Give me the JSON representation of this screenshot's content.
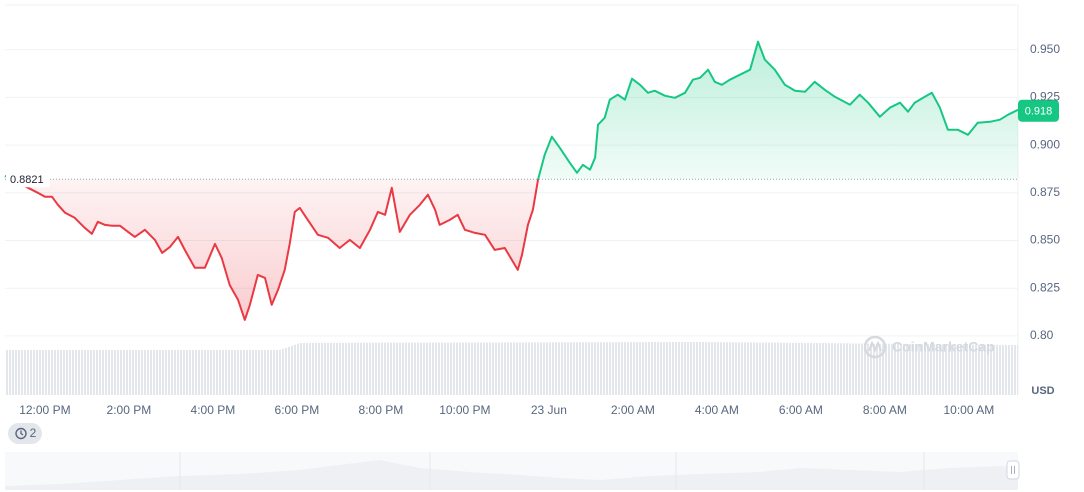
{
  "chart_data": {
    "type": "line",
    "x": [
      -0.95,
      -0.17,
      0,
      0.17,
      0.31,
      0.48,
      0.71,
      0.95,
      1.12,
      1.26,
      1.43,
      1.6,
      1.79,
      1.98,
      2.14,
      2.38,
      2.62,
      2.79,
      2.98,
      3.17,
      3.33,
      3.57,
      3.81,
      4.05,
      4.21,
      4.4,
      4.6,
      4.76,
      4.88,
      5.07,
      5.24,
      5.4,
      5.55,
      5.71,
      5.83,
      5.95,
      6.07,
      6.26,
      6.5,
      6.74,
      7.02,
      7.26,
      7.5,
      7.74,
      7.93,
      8.1,
      8.26,
      8.45,
      8.69,
      8.93,
      9.12,
      9.29,
      9.4,
      9.64,
      9.83,
      10,
      10.24,
      10.48,
      10.71,
      10.95,
      11.12,
      11.26,
      11.36,
      11.5,
      11.62,
      11.74,
      11.9,
      12.07,
      12.26,
      12.5,
      12.67,
      12.81,
      12.98,
      13.1,
      13.17,
      13.33,
      13.45,
      13.64,
      13.81,
      13.98,
      14.17,
      14.36,
      14.52,
      14.76,
      15,
      15.24,
      15.43,
      15.6,
      15.79,
      15.95,
      16.12,
      16.31,
      16.55,
      16.79,
      16.98,
      17.14,
      17.38,
      17.62,
      17.86,
      18.1,
      18.33,
      18.57,
      18.81,
      19.17,
      19.4,
      19.6,
      19.88,
      20.12,
      20.36,
      20.55,
      20.71,
      20.95,
      21.12,
      21.31,
      21.5,
      21.74,
      21.98,
      22.21,
      22.5,
      22.74,
      22.93,
      23.17
    ],
    "values": [
      0.8839,
      0.875,
      0.8729,
      0.8729,
      0.8687,
      0.8645,
      0.8619,
      0.8566,
      0.8535,
      0.8598,
      0.8582,
      0.8577,
      0.8577,
      0.8545,
      0.8519,
      0.8556,
      0.8503,
      0.8435,
      0.8467,
      0.8519,
      0.8451,
      0.8357,
      0.8357,
      0.8482,
      0.8409,
      0.8267,
      0.8189,
      0.8084,
      0.8163,
      0.832,
      0.8304,
      0.8163,
      0.8241,
      0.8346,
      0.8482,
      0.865,
      0.8671,
      0.8608,
      0.853,
      0.8514,
      0.8461,
      0.8503,
      0.8461,
      0.8556,
      0.865,
      0.8635,
      0.8776,
      0.8545,
      0.8635,
      0.8687,
      0.874,
      0.8661,
      0.8582,
      0.8608,
      0.8635,
      0.8556,
      0.854,
      0.853,
      0.8451,
      0.8461,
      0.8398,
      0.8346,
      0.8425,
      0.8582,
      0.8661,
      0.8818,
      0.8949,
      0.9044,
      0.8986,
      0.8907,
      0.8855,
      0.8897,
      0.8871,
      0.8934,
      0.9107,
      0.9143,
      0.9238,
      0.9264,
      0.9238,
      0.9348,
      0.9316,
      0.9274,
      0.9285,
      0.9259,
      0.9248,
      0.9274,
      0.9343,
      0.9353,
      0.9395,
      0.9332,
      0.9316,
      0.9343,
      0.9369,
      0.9395,
      0.9542,
      0.9448,
      0.9395,
      0.9316,
      0.9285,
      0.928,
      0.9332,
      0.929,
      0.9253,
      0.9212,
      0.9264,
      0.9222,
      0.9149,
      0.9196,
      0.9222,
      0.9175,
      0.9222,
      0.9253,
      0.9274,
      0.9196,
      0.908,
      0.908,
      0.9054,
      0.9117,
      0.9122,
      0.9133,
      0.9159,
      0.9185
    ],
    "xlim": [
      -0.95,
      23.17
    ],
    "xticks": [
      {
        "value": 0,
        "label": "12:00 PM"
      },
      {
        "value": 2,
        "label": "2:00 PM"
      },
      {
        "value": 4,
        "label": "4:00 PM"
      },
      {
        "value": 6,
        "label": "6:00 PM"
      },
      {
        "value": 8,
        "label": "8:00 PM"
      },
      {
        "value": 10,
        "label": "10:00 PM"
      },
      {
        "value": 12,
        "label": "23 Jun"
      },
      {
        "value": 14,
        "label": "2:00 AM"
      },
      {
        "value": 16,
        "label": "4:00 AM"
      },
      {
        "value": 18,
        "label": "6:00 AM"
      },
      {
        "value": 20,
        "label": "8:00 AM"
      },
      {
        "value": 22,
        "label": "10:00 AM"
      }
    ],
    "ylim": [
      0.79,
      0.975
    ],
    "yticks": [
      {
        "value": 0.8,
        "label": "0.80"
      },
      0.825,
      {
        "value": 0.85,
        "label": "0.850"
      },
      0.875,
      {
        "value": 0.9,
        "label": "0.900"
      },
      0.925,
      {
        "value": 0.95,
        "label": "0.950"
      }
    ],
    "grid": true,
    "baseline": 0.8821,
    "last_value": 0.918,
    "colors": {
      "up": "#16c784",
      "down": "#ea3943"
    },
    "currency": "USD",
    "watermark": "CoinMarketCap",
    "badge": "2"
  }
}
